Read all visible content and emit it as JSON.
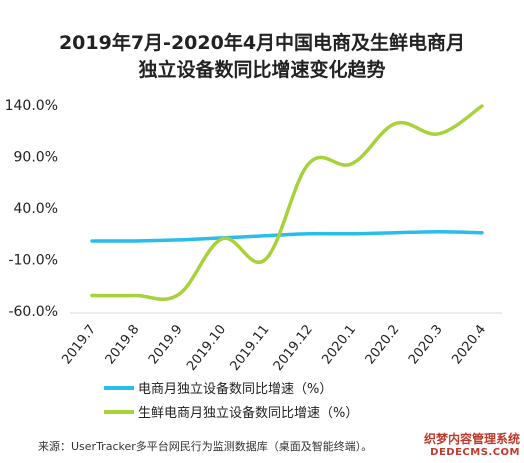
{
  "chart_data": {
    "type": "line",
    "title": "2019年7月-2020年4月中国电商及生鲜电商月独立设备数同比增速变化趋势",
    "title_lines": [
      "2019年7月-2020年4月中国电商及生鲜电商月",
      "独立设备数同比增速变化趋势"
    ],
    "categories": [
      "2019.7",
      "2019.8",
      "2019.9",
      "2019.10",
      "2019.11",
      "2019.12",
      "2020.1",
      "2020.2",
      "2020.3",
      "2020.4"
    ],
    "yticks": [
      "140.0%",
      "90.0%",
      "40.0%",
      "-10.0%",
      "-60.0%"
    ],
    "ytick_values": [
      140,
      90,
      40,
      -10,
      -60
    ],
    "ylim": [
      -60,
      140
    ],
    "grid": false,
    "legend_position": "bottom",
    "series": [
      {
        "name": "电商月独立设备数同比增速（%）",
        "color": "#2bbdea",
        "values": [
          8,
          8,
          9,
          11,
          13,
          15,
          15,
          16,
          17,
          16
        ]
      },
      {
        "name": "生鲜电商月独立设备数同比增速（%）",
        "color": "#a8d13b",
        "values": [
          -45,
          -45,
          -44,
          10,
          -10,
          83,
          83,
          122,
          112,
          139
        ]
      }
    ]
  },
  "source_note": "来源：UserTracker多平台网民行为监测数据库（桌面及智能终端）。",
  "watermark": {
    "line1": "织梦内容管理系统",
    "line2": "DEDECMS.COM"
  }
}
